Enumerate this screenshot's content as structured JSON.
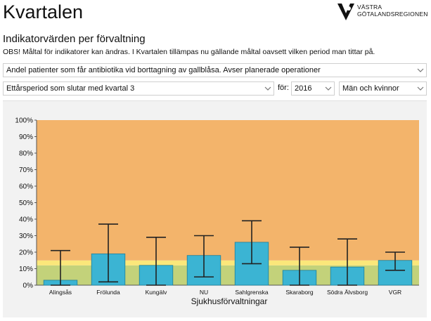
{
  "header": {
    "app_title": "Kvartalen",
    "logo_line1": "VÄSTRA",
    "logo_line2": "GÖTALANDSREGIONEN",
    "logo_icon": "vgr-logo-icon"
  },
  "section": {
    "title": "Indikatorvärden per förvaltning",
    "note": "OBS! Måltal för indikatorer kan ändras. I Kvartalen tillämpas nu gällande måltal oavsett vilken period man tittar på."
  },
  "filters": {
    "indicator": "Andel patienter som får antibiotika vid borttagning av gallblåsa. Avser planerade operationer",
    "period": "Ettårsperiod som slutar med kvartal 3",
    "for_label": "för:",
    "year": "2016",
    "gender": "Män och kvinnor"
  },
  "colors": {
    "bar": "#3bb4d3",
    "bar_stroke": "#1f7f99",
    "zone_high": "#f3b46b",
    "zone_mid": "#fbe77a",
    "zone_low": "#c3d27a"
  },
  "chart_data": {
    "type": "bar",
    "categories": [
      "Alingsås",
      "Frölunda",
      "Kungälv",
      "NU",
      "Sahlgrenska",
      "Skaraborg",
      "Södra Älvsborg",
      "VGR"
    ],
    "values": [
      3,
      19,
      12,
      18,
      26,
      9,
      11,
      15
    ],
    "error_low": [
      0,
      2,
      0,
      5,
      13,
      0,
      0,
      9
    ],
    "error_high": [
      21,
      37,
      29,
      30,
      39,
      23,
      28,
      20
    ],
    "xlabel": "Sjukhusförvaltningar",
    "ylabel": "",
    "ylim": [
      0,
      100
    ],
    "yticks": [
      "0%",
      "10%",
      "20%",
      "30%",
      "40%",
      "50%",
      "60%",
      "70%",
      "80%",
      "90%",
      "100%"
    ],
    "target_zones": [
      {
        "from": 0,
        "to": 12,
        "color": "#c3d27a"
      },
      {
        "from": 12,
        "to": 15,
        "color": "#fbe77a"
      },
      {
        "from": 15,
        "to": 100,
        "color": "#f3b46b"
      }
    ],
    "grid": false,
    "legend": "none"
  }
}
